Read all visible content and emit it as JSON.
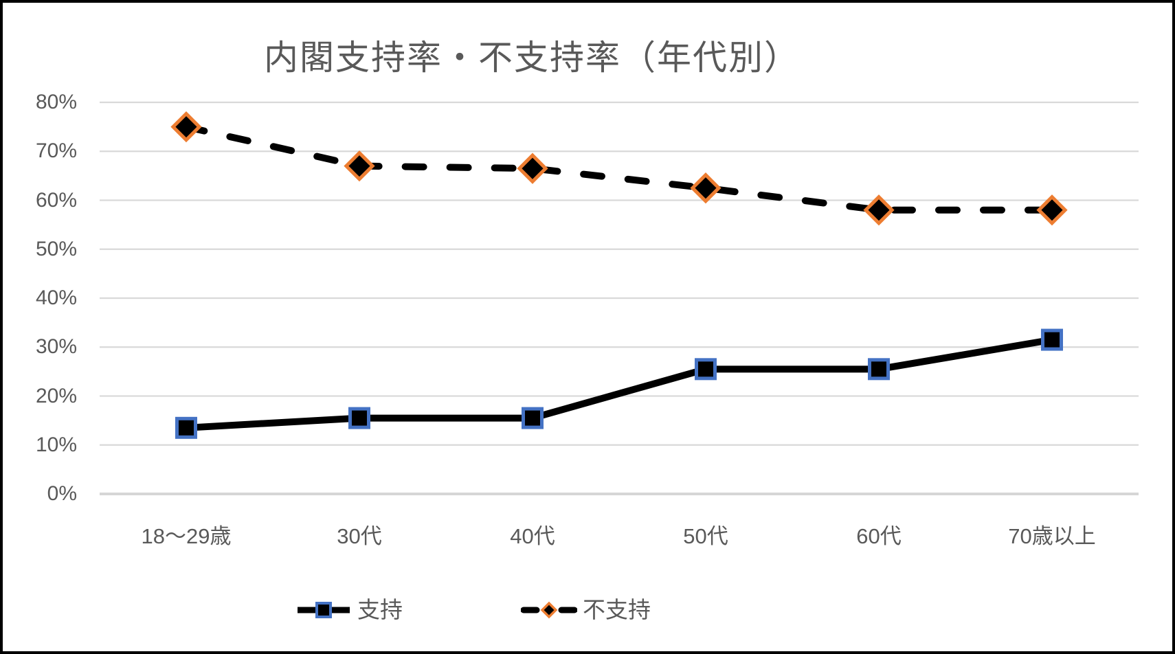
{
  "title": "内閣支持率・不支持率（年代別）",
  "chart_data": {
    "type": "line",
    "title": "内閣支持率・不支持率（年代別）",
    "categories": [
      "18〜29歳",
      "30代",
      "40代",
      "50代",
      "60代",
      "70歳以上"
    ],
    "series": [
      {
        "name": "支持",
        "values": [
          13.5,
          15.5,
          15.5,
          25.5,
          25.5,
          31.5
        ],
        "line_style": "solid",
        "line_color": "#000000",
        "marker": "square",
        "marker_fill": "#000000",
        "marker_border": "#4472C4"
      },
      {
        "name": "不支持",
        "values": [
          75,
          67,
          66.5,
          62.5,
          58,
          58
        ],
        "line_style": "dashed",
        "line_color": "#000000",
        "marker": "diamond",
        "marker_fill": "#000000",
        "marker_border": "#ED7D31"
      }
    ],
    "xlabel": "",
    "ylabel": "",
    "ylim": [
      0,
      80
    ],
    "ytick_step": 10,
    "ytick_labels": [
      "0%",
      "10%",
      "20%",
      "30%",
      "40%",
      "50%",
      "60%",
      "70%",
      "80%"
    ],
    "grid": true,
    "legend_position": "bottom",
    "colors": {
      "gridline": "#D9D9D9",
      "axis_line": "#D6D6D6",
      "label_text": "#595959",
      "title_text": "#595959",
      "frame_border": "#000000",
      "background": "#FFFFFF"
    }
  }
}
